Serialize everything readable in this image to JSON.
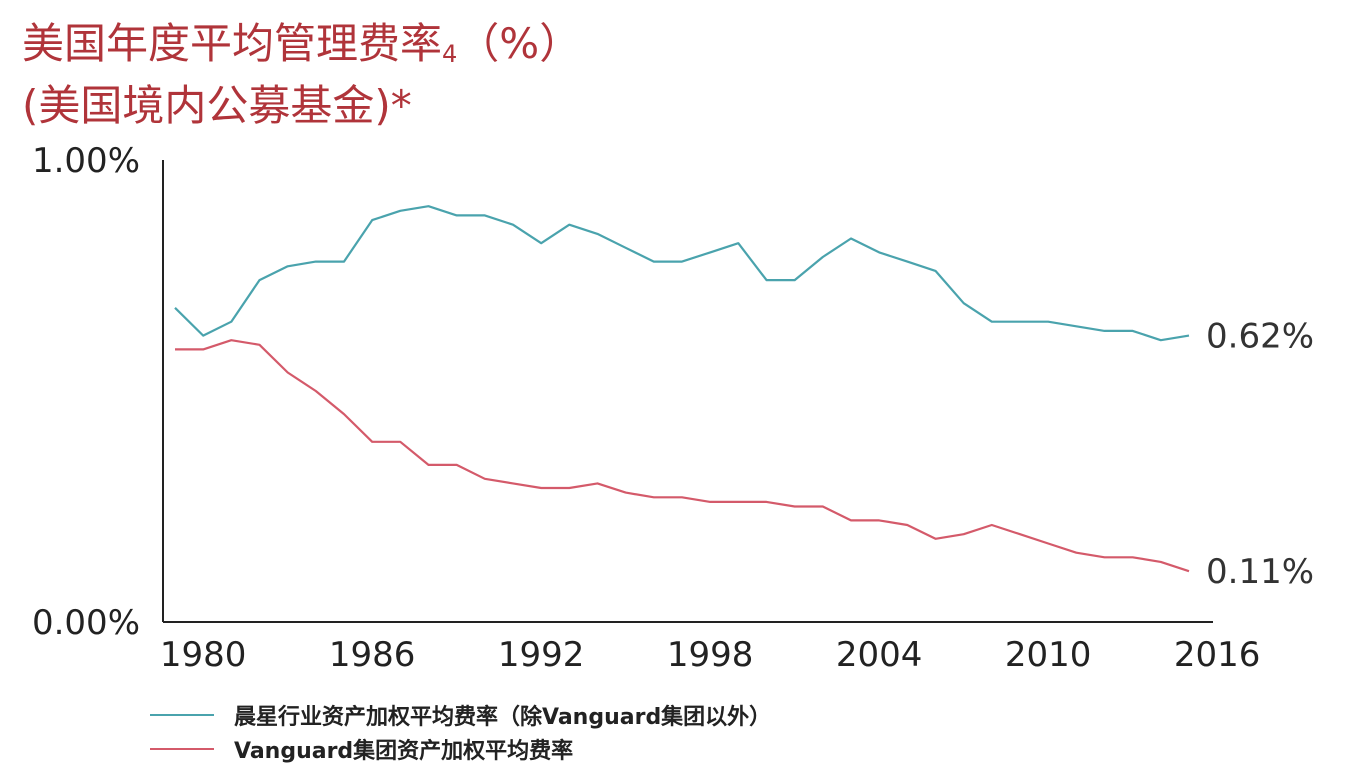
{
  "title": {
    "line1": "美国年度平均管理费率",
    "sub": "4",
    "line1_suffix": "（%）",
    "line2": "(美国境内公募基金)*"
  },
  "colors": {
    "title": "#b0343a",
    "industry": "#4aa3ad",
    "vanguard": "#d45a6a"
  },
  "chart_data": {
    "type": "line",
    "title": "美国年度平均管理费率4（%）(美国境内公募基金)*",
    "xlabel": "",
    "ylabel": "",
    "x_ticks": [
      "1980",
      "1986",
      "1992",
      "1998",
      "2004",
      "2010",
      "2016"
    ],
    "y_ticks": [
      "1.00%",
      "0.00%"
    ],
    "xlim": [
      1979,
      2016
    ],
    "ylim": [
      0,
      1.0
    ],
    "x": [
      1979,
      1980,
      1981,
      1982,
      1983,
      1984,
      1985,
      1986,
      1987,
      1988,
      1989,
      1990,
      1991,
      1992,
      1993,
      1994,
      1995,
      1996,
      1997,
      1998,
      1999,
      2000,
      2001,
      2002,
      2003,
      2004,
      2005,
      2006,
      2007,
      2008,
      2009,
      2010,
      2011,
      2012,
      2013,
      2014,
      2015
    ],
    "series": [
      {
        "name": "晨星行业资产加权平均费率（除Vanguard集团以外）",
        "values": [
          0.68,
          0.62,
          0.65,
          0.74,
          0.77,
          0.78,
          0.78,
          0.87,
          0.89,
          0.9,
          0.88,
          0.88,
          0.86,
          0.82,
          0.86,
          0.84,
          0.81,
          0.78,
          0.78,
          0.8,
          0.82,
          0.74,
          0.74,
          0.79,
          0.83,
          0.8,
          0.78,
          0.76,
          0.69,
          0.65,
          0.65,
          0.65,
          0.64,
          0.63,
          0.63,
          0.61,
          0.62
        ],
        "end_label": "0.62%"
      },
      {
        "name": "Vanguard集团资产加权平均费率",
        "values": [
          0.59,
          0.59,
          0.61,
          0.6,
          0.54,
          0.5,
          0.45,
          0.39,
          0.39,
          0.34,
          0.34,
          0.31,
          0.3,
          0.29,
          0.29,
          0.3,
          0.28,
          0.27,
          0.27,
          0.26,
          0.26,
          0.26,
          0.25,
          0.25,
          0.22,
          0.22,
          0.21,
          0.18,
          0.19,
          0.21,
          0.19,
          0.17,
          0.15,
          0.14,
          0.14,
          0.13,
          0.11
        ],
        "end_label": "0.11%"
      }
    ],
    "grid": false,
    "legend": "bottom-left"
  }
}
